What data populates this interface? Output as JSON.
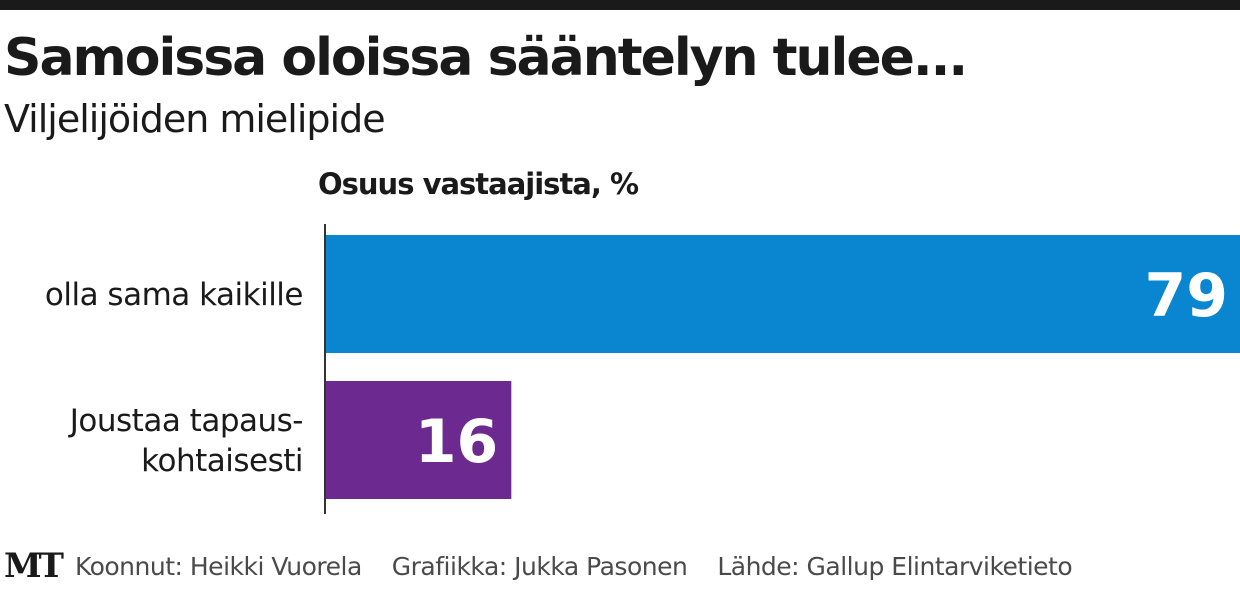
{
  "header": {
    "title": "Samoissa oloissa sääntelyn tulee...",
    "subtitle": "Viljelijöiden mielipide"
  },
  "chart_data": {
    "type": "bar",
    "orientation": "horizontal",
    "title": "Samoissa oloissa sääntelyn tulee...",
    "subtitle": "Viljelijöiden mielipide",
    "xlabel": "Osuus vastaajista, %",
    "ylabel": "",
    "categories": [
      "olla sama kaikille",
      "Joustaa tapaus-kohtaisesti"
    ],
    "category_lines": [
      [
        "olla sama kaikille"
      ],
      [
        "Joustaa tapaus-",
        "kohtaisesti"
      ]
    ],
    "values": [
      79,
      16
    ],
    "data_labels": [
      "79",
      "16"
    ],
    "colors": [
      "#0a86d1",
      "#6c2a91"
    ],
    "xlim": [
      0,
      79
    ],
    "grid": false,
    "legend": "none"
  },
  "footer": {
    "logo": "MT",
    "compiled_by": "Koonnut: Heikki Vuorela",
    "graphics_by": "Grafiikka: Jukka Pasonen",
    "source": "Lähde: Gallup Elintarviketieto"
  }
}
